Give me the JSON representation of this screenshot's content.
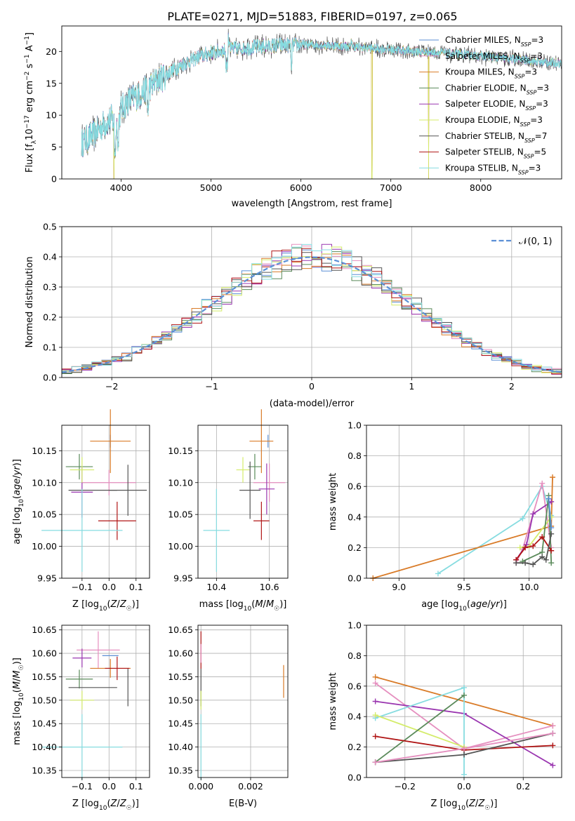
{
  "title": "PLATE=0271, MJD=51883, FIBERID=0197, z=0.065",
  "colors": {
    "chabrier_miles": "#5b8fd6",
    "salpeter_miles": "#e58fbf",
    "kroupa_miles": "#d97b28",
    "chabrier_elodie": "#5a8a5a",
    "salpeter_elodie": "#9a36b0",
    "kroupa_elodie": "#d4ec6a",
    "chabrier_stelib": "#555555",
    "salpeter_stelib": "#b01515",
    "kroupa_stelib": "#86dce0",
    "gaussian": "#5b8fd6",
    "grid": "#b0b0b0"
  },
  "chart_data": [
    {
      "type": "line",
      "xlabel": "wavelength [Angstrom, rest frame]",
      "ylabel": "Flux [f_λ 10^-17 erg cm^-2 s^-1 A^-1]",
      "xlim": [
        3340,
        8900
      ],
      "ylim": [
        0,
        24
      ],
      "xticks": [
        4000,
        5000,
        6000,
        7000,
        8000
      ],
      "yticks": [
        0,
        5,
        10,
        15,
        20
      ],
      "grid": false,
      "legend_position": "right",
      "legend": [
        {
          "model": "Chabrier MILES",
          "n": "3"
        },
        {
          "model": "Salpeter MILES",
          "n": "3"
        },
        {
          "model": "Kroupa MILES",
          "n": "3"
        },
        {
          "model": "Chabrier ELODIE",
          "n": "3"
        },
        {
          "model": "Salpeter ELODIE",
          "n": "3"
        },
        {
          "model": "Kroupa ELODIE",
          "n": "3"
        },
        {
          "model": "Chabrier STELIB",
          "n": "7"
        },
        {
          "model": "Salpeter STELIB",
          "n": "5"
        },
        {
          "model": "Kroupa STELIB",
          "n": "3"
        }
      ],
      "spectrum_envelope": {
        "x": [
          3550,
          3700,
          3800,
          3900,
          3950,
          4000,
          4100,
          4200,
          4300,
          4400,
          4500,
          4600,
          4700,
          4800,
          4900,
          5000,
          5200,
          5400,
          5600,
          5800,
          6000,
          6200,
          6400,
          6600,
          6800,
          7000,
          7200,
          7400,
          7600,
          7800,
          8000,
          8200,
          8400,
          8600,
          8800
        ],
        "y": [
          5.5,
          7.0,
          8.5,
          9.5,
          8.0,
          11.0,
          12.5,
          13.2,
          14.2,
          15.5,
          16.3,
          17.3,
          18.1,
          18.8,
          19.3,
          19.8,
          20.3,
          20.6,
          20.8,
          21.0,
          21.1,
          21.0,
          20.9,
          20.7,
          20.5,
          20.3,
          20.1,
          19.9,
          19.7,
          19.5,
          19.3,
          19.0,
          18.8,
          18.5,
          18.2
        ]
      },
      "dropouts": [
        3920,
        6790,
        7420
      ]
    },
    {
      "type": "step",
      "xlabel": "(data-model)/error",
      "ylabel": "Normed distribution",
      "xlim": [
        -2.5,
        2.5
      ],
      "ylim": [
        0,
        0.5
      ],
      "xticks": [
        -2,
        -1,
        0,
        1,
        2
      ],
      "yticks": [
        0.0,
        0.1,
        0.2,
        0.3,
        0.4,
        0.5
      ],
      "grid": true,
      "legend_position": "top-right",
      "legend_label": "𝒩(0, 1)",
      "bin_width": 0.1
    },
    {
      "type": "errorbar",
      "xlabel": "Z [log₁₀(Z/Z☉)]",
      "ylabel": "age  [log₁₀(age/yr)]",
      "xlim": [
        -0.175,
        0.15
      ],
      "ylim": [
        9.95,
        10.19
      ],
      "xticks": [
        -0.1,
        0.0,
        0.1
      ],
      "yticks": [
        9.95,
        10.0,
        10.05,
        10.1,
        10.15
      ],
      "points": [
        {
          "c": "chabrier_miles",
          "x": 0.005,
          "y": 10.165,
          "ex": 0.0,
          "ey": 0.01
        },
        {
          "c": "salpeter_miles",
          "x": 0.0,
          "y": 10.1,
          "ex": 0.1,
          "ey": 0.02
        },
        {
          "c": "kroupa_miles",
          "x": 0.005,
          "y": 10.165,
          "ex": 0.075,
          "ey": 0.05
        },
        {
          "c": "chabrier_elodie",
          "x": -0.11,
          "y": 10.125,
          "ex": 0.05,
          "ey": 0.02
        },
        {
          "c": "salpeter_elodie",
          "x": -0.1,
          "y": 10.085,
          "ex": 0.04,
          "ey": 0.04
        },
        {
          "c": "kroupa_elodie",
          "x": -0.1,
          "y": 10.12,
          "ex": 0.045,
          "ey": 0.02
        },
        {
          "c": "chabrier_stelib",
          "x": 0.07,
          "y": 10.088,
          "ex": 0.07,
          "ey": 0.04
        },
        {
          "c": "chabrier_stelib",
          "x": -0.06,
          "y": 10.088,
          "ex": 0.09,
          "ey": 0.0
        },
        {
          "c": "salpeter_stelib",
          "x": 0.03,
          "y": 10.04,
          "ex": 0.07,
          "ey": 0.03
        },
        {
          "c": "kroupa_stelib",
          "x": -0.1,
          "y": 10.025,
          "ex": 0.15,
          "ey": 0.065
        }
      ]
    },
    {
      "type": "errorbar",
      "xlabel": "mass [log₁₀(M/M☉)]",
      "ylabel": "",
      "xlim": [
        10.33,
        10.67
      ],
      "ylim": [
        9.95,
        10.19
      ],
      "xticks": [
        10.4,
        10.6
      ],
      "yticks": [
        9.95,
        10.0,
        10.05,
        10.1,
        10.15
      ],
      "points": [
        {
          "c": "chabrier_miles",
          "x": 10.595,
          "y": 10.165,
          "ex": 0.0,
          "ey": 0.01
        },
        {
          "c": "salpeter_miles",
          "x": 10.6,
          "y": 10.1,
          "ex": 0.06,
          "ey": 0.03
        },
        {
          "c": "kroupa_miles",
          "x": 10.57,
          "y": 10.165,
          "ex": 0.045,
          "ey": 0.05
        },
        {
          "c": "chabrier_elodie",
          "x": 10.545,
          "y": 10.125,
          "ex": 0.025,
          "ey": 0.02
        },
        {
          "c": "salpeter_elodie",
          "x": 10.59,
          "y": 10.09,
          "ex": 0.03,
          "ey": 0.04
        },
        {
          "c": "kroupa_elodie",
          "x": 10.5,
          "y": 10.12,
          "ex": 0.025,
          "ey": 0.02
        },
        {
          "c": "chabrier_stelib",
          "x": 10.527,
          "y": 10.088,
          "ex": 0.04,
          "ey": 0.045
        },
        {
          "c": "salpeter_stelib",
          "x": 10.57,
          "y": 10.04,
          "ex": 0.03,
          "ey": 0.03
        },
        {
          "c": "kroupa_stelib",
          "x": 10.4,
          "y": 10.025,
          "ex": 0.05,
          "ey": 0.065
        }
      ]
    },
    {
      "type": "line",
      "xlabel": "age  [log₁₀(age/yr)]",
      "ylabel": "mass weight",
      "xlim": [
        8.75,
        10.25
      ],
      "ylim": [
        0,
        1
      ],
      "xticks": [
        9.0,
        9.5,
        10.0
      ],
      "yticks": [
        0.0,
        0.2,
        0.4,
        0.6,
        0.8,
        1.0
      ],
      "series": [
        {
          "c": "kroupa_stelib",
          "x": [
            9.3,
            9.95,
            10.1,
            10.17
          ],
          "y": [
            0.03,
            0.39,
            0.6,
            0.41
          ]
        },
        {
          "c": "kroupa_miles",
          "x": [
            8.8,
            10.17,
            10.18
          ],
          "y": [
            0.0,
            0.34,
            0.66
          ]
        },
        {
          "c": "salpeter_miles",
          "x": [
            9.9,
            9.95,
            10.1,
            10.17
          ],
          "y": [
            0.1,
            0.19,
            0.62,
            0.2
          ]
        },
        {
          "c": "kroupa_elodie",
          "x": [
            9.93,
            10.0,
            10.17
          ],
          "y": [
            0.2,
            0.21,
            0.4
          ]
        },
        {
          "c": "salpeter_elodie",
          "x": [
            9.9,
            9.98,
            10.03,
            10.17
          ],
          "y": [
            0.12,
            0.22,
            0.42,
            0.5
          ]
        },
        {
          "c": "chabrier_elodie",
          "x": [
            9.95,
            10.1,
            10.15,
            10.17
          ],
          "y": [
            0.11,
            0.17,
            0.54,
            0.1
          ]
        },
        {
          "c": "salpeter_stelib",
          "x": [
            9.9,
            9.97,
            10.03,
            10.1,
            10.17
          ],
          "y": [
            0.12,
            0.2,
            0.21,
            0.27,
            0.18
          ]
        },
        {
          "c": "chabrier_stelib",
          "x": [
            9.9,
            9.97,
            10.03,
            10.1,
            10.13,
            10.17
          ],
          "y": [
            0.1,
            0.1,
            0.09,
            0.14,
            0.12,
            0.29
          ]
        },
        {
          "c": "chabrier_miles",
          "x": [
            10.15,
            10.17
          ],
          "y": [
            0.52,
            0.33
          ]
        }
      ]
    },
    {
      "type": "errorbar",
      "xlabel": "Z [log₁₀(Z/Z☉)]",
      "ylabel": "mass [log₁₀(M/M☉)]",
      "xlim": [
        -0.175,
        0.15
      ],
      "ylim": [
        10.335,
        10.66
      ],
      "xticks": [
        -0.1,
        0.0,
        0.1
      ],
      "yticks": [
        10.35,
        10.4,
        10.45,
        10.5,
        10.55,
        10.6,
        10.65
      ],
      "points": [
        {
          "c": "chabrier_miles",
          "x": 0.005,
          "y": 10.595,
          "ex": 0.03,
          "ey": 0.0
        },
        {
          "c": "salpeter_miles",
          "x": -0.04,
          "y": 10.607,
          "ex": 0.08,
          "ey": 0.04
        },
        {
          "c": "kroupa_miles",
          "x": 0.005,
          "y": 10.568,
          "ex": 0.075,
          "ey": 0.02
        },
        {
          "c": "chabrier_elodie",
          "x": -0.11,
          "y": 10.545,
          "ex": 0.05,
          "ey": 0.02
        },
        {
          "c": "salpeter_elodie",
          "x": -0.1,
          "y": 10.59,
          "ex": 0.035,
          "ey": 0.02
        },
        {
          "c": "kroupa_elodie",
          "x": -0.1,
          "y": 10.5,
          "ex": 0.045,
          "ey": 0.02
        },
        {
          "c": "chabrier_stelib",
          "x": 0.07,
          "y": 10.527,
          "ex": 0.0,
          "ey": 0.04
        },
        {
          "c": "chabrier_stelib",
          "x": -0.06,
          "y": 10.527,
          "ex": 0.09,
          "ey": 0.0
        },
        {
          "c": "salpeter_stelib",
          "x": 0.03,
          "y": 10.568,
          "ex": 0.045,
          "ey": 0.025
        },
        {
          "c": "kroupa_stelib",
          "x": -0.1,
          "y": 10.4,
          "ex": 0.15,
          "ey": 0.07
        }
      ]
    },
    {
      "type": "errorbar",
      "xlabel": "E(B-V)",
      "ylabel": "",
      "xlim": [
        -0.00012,
        0.0035
      ],
      "ylim": [
        10.335,
        10.66
      ],
      "xticks": [
        0.0,
        0.002
      ],
      "yticks": [
        10.35,
        10.4,
        10.45,
        10.5,
        10.55,
        10.6,
        10.65
      ],
      "points": [
        {
          "c": "salpeter_stelib",
          "x": 0.0,
          "y": 10.607,
          "ex": 0.0,
          "ey": 0.04
        },
        {
          "c": "chabrier_stelib",
          "x": 0.0,
          "y": 10.527,
          "ex": 0.0,
          "ey": 0.04
        },
        {
          "c": "salpeter_miles",
          "x": 0.0,
          "y": 10.6,
          "ex": 0.0,
          "ey": 0.02
        },
        {
          "c": "kroupa_elodie",
          "x": 0.0,
          "y": 10.5,
          "ex": 0.0,
          "ey": 0.02
        },
        {
          "c": "kroupa_stelib",
          "x": 0.0,
          "y": 10.4,
          "ex": 0.0,
          "ey": 0.07
        },
        {
          "c": "kroupa_miles",
          "x": 0.00333,
          "y": 10.54,
          "ex": 0.0,
          "ey": 0.035
        }
      ]
    },
    {
      "type": "line",
      "xlabel": "Z [log₁₀(Z/Z☉)]",
      "ylabel": "mass weight",
      "xlim": [
        -0.33,
        0.33
      ],
      "ylim": [
        0,
        1
      ],
      "xticks": [
        -0.2,
        0.0,
        0.2
      ],
      "yticks": [
        0.0,
        0.2,
        0.4,
        0.6,
        0.8,
        1.0
      ],
      "series": [
        {
          "c": "kroupa_miles",
          "x": [
            -0.3,
            0.3
          ],
          "y": [
            0.66,
            0.34
          ]
        },
        {
          "c": "salpeter_miles",
          "x": [
            -0.3,
            0.0,
            0.3
          ],
          "y": [
            0.62,
            0.19,
            0.34
          ]
        },
        {
          "c": "salpeter_elodie",
          "x": [
            -0.3,
            0.0,
            0.3
          ],
          "y": [
            0.5,
            0.42,
            0.08
          ]
        },
        {
          "c": "kroupa_stelib",
          "x": [
            -0.3,
            0.0,
            0.0
          ],
          "y": [
            0.39,
            0.59,
            0.02
          ]
        },
        {
          "c": "kroupa_elodie",
          "x": [
            -0.3,
            0.0
          ],
          "y": [
            0.41,
            0.2
          ]
        },
        {
          "c": "chabrier_elodie",
          "x": [
            -0.3,
            0.0
          ],
          "y": [
            0.1,
            0.54
          ]
        },
        {
          "c": "salpeter_stelib",
          "x": [
            -0.3,
            0.0,
            0.3
          ],
          "y": [
            0.27,
            0.18,
            0.21
          ]
        },
        {
          "c": "chabrier_stelib",
          "x": [
            -0.3,
            0.0,
            0.3
          ],
          "y": [
            0.1,
            0.15,
            0.29
          ]
        },
        {
          "c": "salpeter_miles",
          "x": [
            -0.3,
            0.0,
            0.3
          ],
          "y": [
            0.1,
            0.19,
            0.29
          ]
        }
      ]
    }
  ]
}
